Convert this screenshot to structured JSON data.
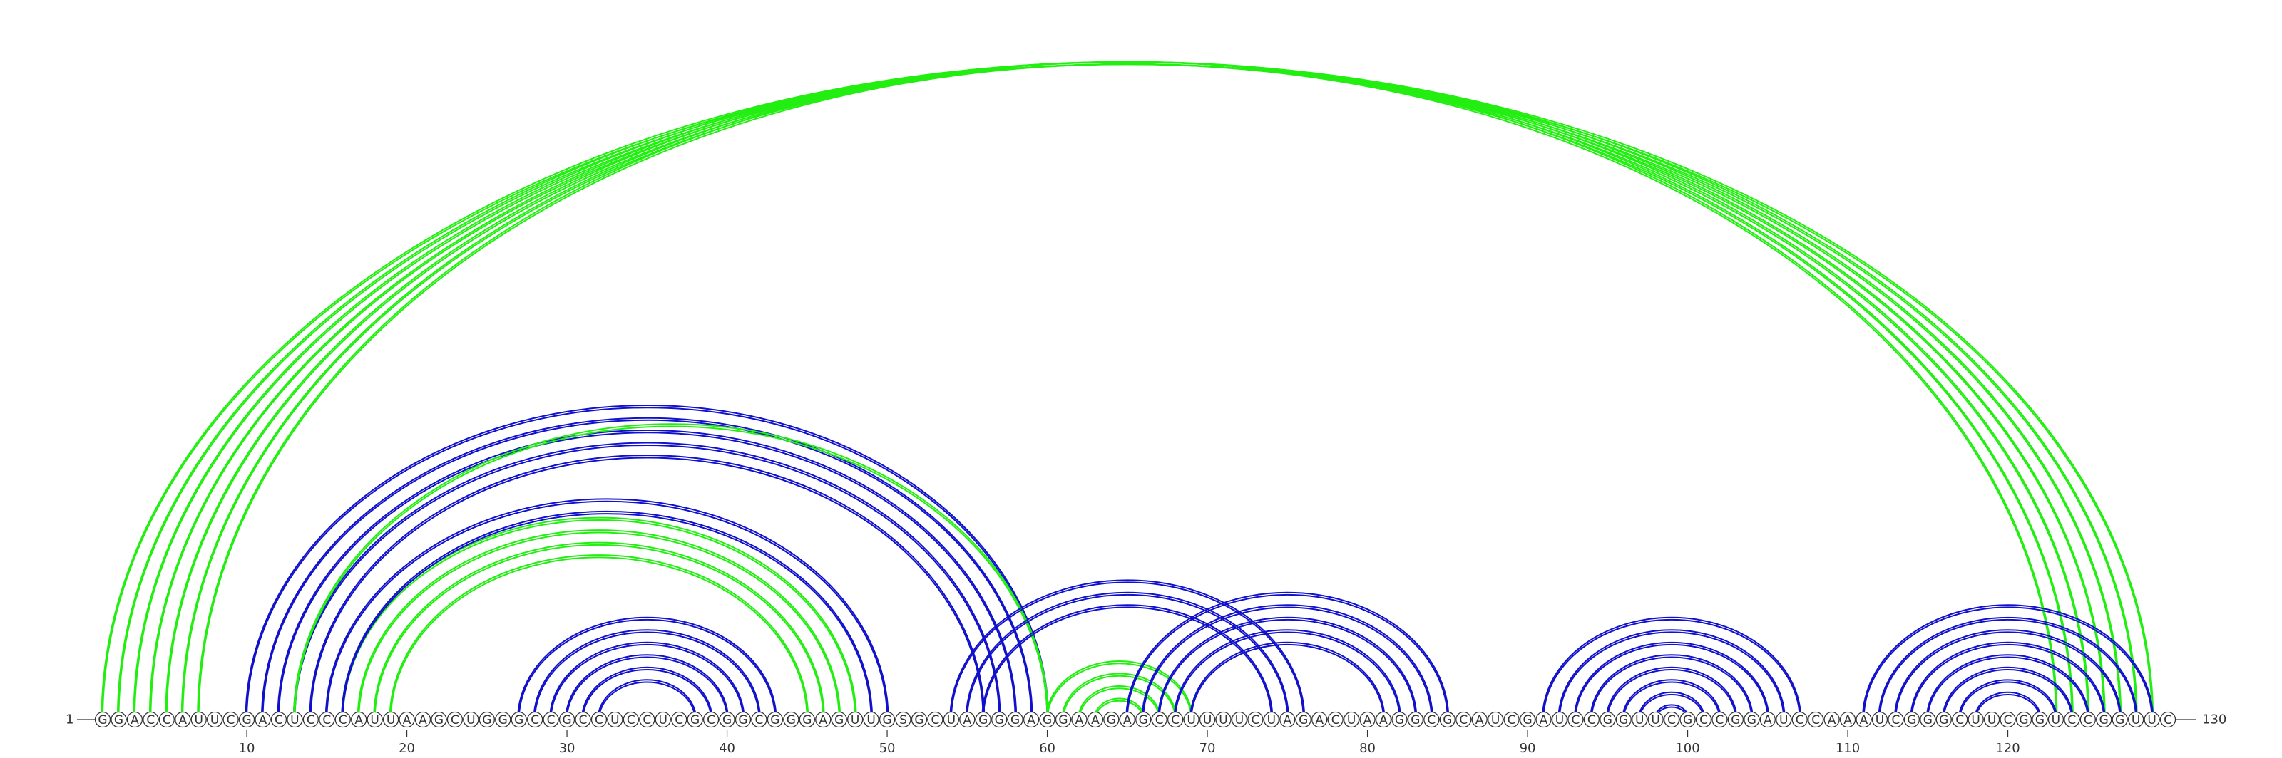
{
  "sequence": "GGACCAUUCGACUCCCAUUAAGCUGGGCCGCCUCCUCGCGGCGGGAGUUGSGCUAGGGAGGAAGAGCCUUUUCUAGACUAAGGCGCAUCGAUCCGGUUCGCCGGAUCCAAAUCGGGCUUCGGUCCGGUUC",
  "start_label": "1",
  "end_label": "130",
  "ticks": [
    "10",
    "20",
    "30",
    "40",
    "50",
    "60",
    "70",
    "80",
    "90",
    "100",
    "110",
    "120"
  ],
  "colors": {
    "green": "#22ee11",
    "blue": "#1111cc",
    "text": "#333333"
  },
  "arcs": [
    {
      "i": 1,
      "j": 129,
      "color": "green"
    },
    {
      "i": 2,
      "j": 128,
      "color": "green"
    },
    {
      "i": 3,
      "j": 127,
      "color": "green"
    },
    {
      "i": 4,
      "j": 126,
      "color": "green"
    },
    {
      "i": 5,
      "j": 125,
      "color": "green"
    },
    {
      "i": 6,
      "j": 124,
      "color": "green"
    },
    {
      "i": 7,
      "j": 123,
      "color": "green"
    },
    {
      "i": 10,
      "j": 60,
      "color": "blue"
    },
    {
      "i": 11,
      "j": 59,
      "color": "blue"
    },
    {
      "i": 12,
      "j": 58,
      "color": "blue"
    },
    {
      "i": 13,
      "j": 57,
      "color": "blue"
    },
    {
      "i": 14,
      "j": 56,
      "color": "blue"
    },
    {
      "i": 13,
      "j": 60,
      "color": "green"
    },
    {
      "i": 16,
      "j": 48,
      "color": "green"
    },
    {
      "i": 17,
      "j": 47,
      "color": "green"
    },
    {
      "i": 18,
      "j": 46,
      "color": "green"
    },
    {
      "i": 19,
      "j": 45,
      "color": "green"
    },
    {
      "i": 15,
      "j": 50,
      "color": "blue"
    },
    {
      "i": 16,
      "j": 49,
      "color": "blue"
    },
    {
      "i": 27,
      "j": 43,
      "color": "blue"
    },
    {
      "i": 28,
      "j": 42,
      "color": "blue"
    },
    {
      "i": 29,
      "j": 41,
      "color": "blue"
    },
    {
      "i": 30,
      "j": 40,
      "color": "blue"
    },
    {
      "i": 31,
      "j": 39,
      "color": "blue"
    },
    {
      "i": 32,
      "j": 38,
      "color": "blue"
    },
    {
      "i": 54,
      "j": 76,
      "color": "blue"
    },
    {
      "i": 55,
      "j": 75,
      "color": "blue"
    },
    {
      "i": 56,
      "j": 74,
      "color": "blue"
    },
    {
      "i": 60,
      "j": 69,
      "color": "green"
    },
    {
      "i": 61,
      "j": 68,
      "color": "green"
    },
    {
      "i": 62,
      "j": 67,
      "color": "green"
    },
    {
      "i": 63,
      "j": 66,
      "color": "green"
    },
    {
      "i": 65,
      "j": 85,
      "color": "blue"
    },
    {
      "i": 66,
      "j": 84,
      "color": "blue"
    },
    {
      "i": 67,
      "j": 83,
      "color": "blue"
    },
    {
      "i": 68,
      "j": 82,
      "color": "blue"
    },
    {
      "i": 69,
      "j": 81,
      "color": "blue"
    },
    {
      "i": 91,
      "j": 107,
      "color": "blue"
    },
    {
      "i": 92,
      "j": 106,
      "color": "blue"
    },
    {
      "i": 93,
      "j": 105,
      "color": "blue"
    },
    {
      "i": 94,
      "j": 104,
      "color": "blue"
    },
    {
      "i": 95,
      "j": 103,
      "color": "blue"
    },
    {
      "i": 96,
      "j": 102,
      "color": "blue"
    },
    {
      "i": 97,
      "j": 101,
      "color": "blue"
    },
    {
      "i": 98,
      "j": 100,
      "color": "blue"
    },
    {
      "i": 111,
      "j": 129,
      "color": "blue"
    },
    {
      "i": 112,
      "j": 128,
      "color": "blue"
    },
    {
      "i": 113,
      "j": 127,
      "color": "blue"
    },
    {
      "i": 114,
      "j": 126,
      "color": "blue"
    },
    {
      "i": 115,
      "j": 125,
      "color": "blue"
    },
    {
      "i": 116,
      "j": 124,
      "color": "blue"
    },
    {
      "i": 117,
      "j": 123,
      "color": "blue"
    },
    {
      "i": 118,
      "j": 122,
      "color": "blue"
    }
  ]
}
